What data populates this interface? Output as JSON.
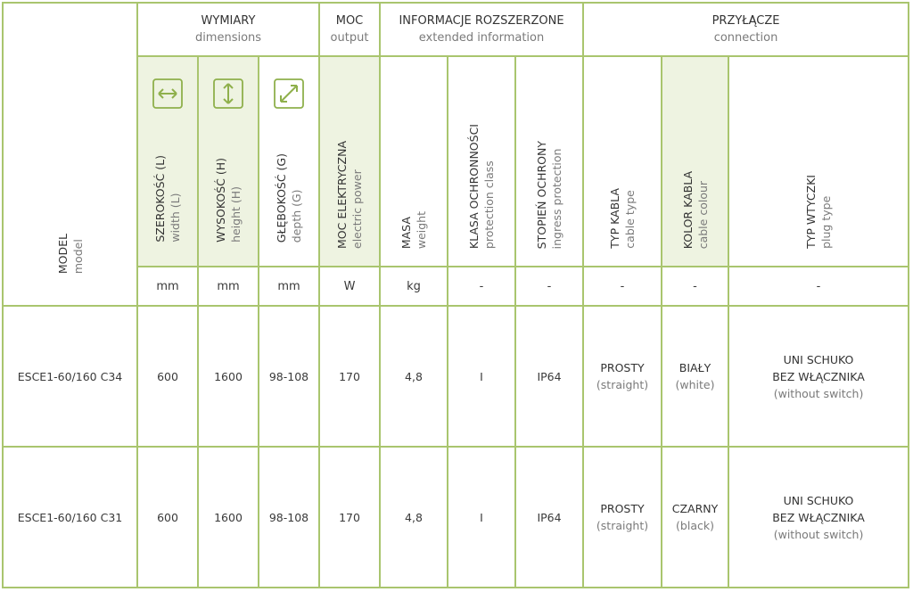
{
  "colors": {
    "border": "#a9c56e",
    "shade": "#eef3e1",
    "icon": "#8fb04c"
  },
  "groups": {
    "dimensions": {
      "pl": "WYMIARY",
      "en": "dimensions"
    },
    "output": {
      "pl": "MOC",
      "en": "output"
    },
    "extended": {
      "pl": "INFORMACJE ROZSZERZONE",
      "en": "extended information"
    },
    "connection": {
      "pl": "PRZYŁĄCZE",
      "en": "connection"
    }
  },
  "columns": {
    "model": {
      "pl": "MODEL",
      "en": "model"
    },
    "width": {
      "pl": "SZEROKOŚĆ (L)",
      "en": "width (L)",
      "unit": "mm",
      "icon": "horizontal-arrow-icon"
    },
    "height": {
      "pl": "WYSOKOŚĆ (H)",
      "en": "height (H)",
      "unit": "mm",
      "icon": "vertical-arrow-icon"
    },
    "depth": {
      "pl": "GŁĘBOKOŚĆ (G)",
      "en": "depth (G)",
      "unit": "mm",
      "icon": "diagonal-arrow-icon"
    },
    "power": {
      "pl": "MOC ELEKTRYCZNA",
      "en": "electric power",
      "unit": "W"
    },
    "mass": {
      "pl": "MASA",
      "en": "weight",
      "unit": "kg"
    },
    "protection_class": {
      "pl": "KLASA OCHRONNOŚCI",
      "en": "protection class",
      "unit": "-"
    },
    "ingress": {
      "pl": "STOPIEŃ OCHRONY",
      "en": "ingress protection",
      "unit": "-"
    },
    "cable_type": {
      "pl": "TYP KABLA",
      "en": "cable type",
      "unit": "-"
    },
    "cable_colour": {
      "pl": "KOLOR KABLA",
      "en": "cable colour",
      "unit": "-"
    },
    "plug_type": {
      "pl": "TYP WTYCZKI",
      "en": "plug type",
      "unit": "-"
    }
  },
  "rows": [
    {
      "model": "ESCE1-60/160 C34",
      "width": "600",
      "height": "1600",
      "depth": "98-108",
      "power": "170",
      "mass": "4,8",
      "protection_class": "I",
      "ingress": "IP64",
      "cable_type_pl": "PROSTY",
      "cable_type_en": "(straight)",
      "cable_colour_pl": "BIAŁY",
      "cable_colour_en": "(white)",
      "plug_pl1": "UNI SCHUKO",
      "plug_pl2": "BEZ WŁĄCZNIKA",
      "plug_en": "(without switch)"
    },
    {
      "model": "ESCE1-60/160 C31",
      "width": "600",
      "height": "1600",
      "depth": "98-108",
      "power": "170",
      "mass": "4,8",
      "protection_class": "I",
      "ingress": "IP64",
      "cable_type_pl": "PROSTY",
      "cable_type_en": "(straight)",
      "cable_colour_pl": "CZARNY",
      "cable_colour_en": "(black)",
      "plug_pl1": "UNI SCHUKO",
      "plug_pl2": "BEZ WŁĄCZNIKA",
      "plug_en": "(without switch)"
    }
  ]
}
